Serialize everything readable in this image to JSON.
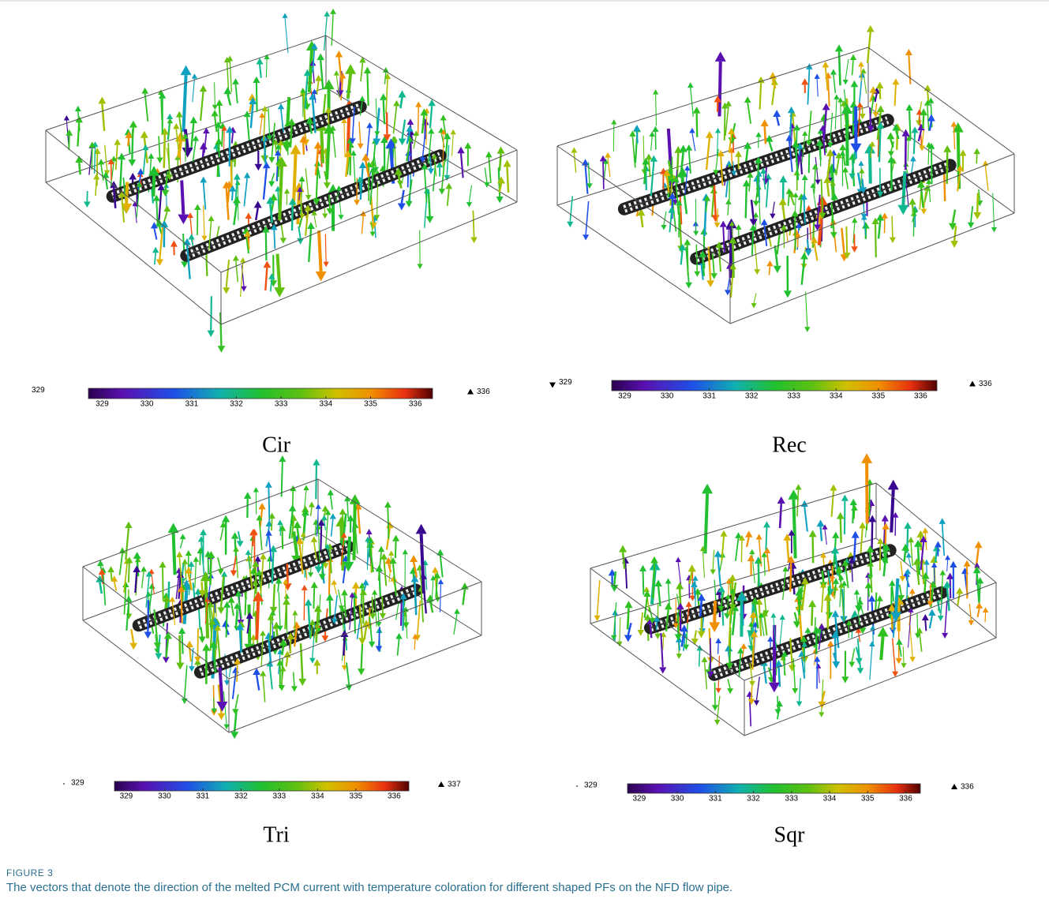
{
  "figure": {
    "panels": [
      {
        "label": "Cir",
        "colorbar": {
          "min_label": "329",
          "max_label": "336",
          "ticks": [
            329,
            330,
            331,
            332,
            333,
            334,
            335,
            336
          ]
        }
      },
      {
        "label": "Rec",
        "colorbar": {
          "min_label": "329",
          "max_label": "336",
          "ticks": [
            329,
            330,
            331,
            332,
            333,
            334,
            335,
            336
          ]
        }
      },
      {
        "label": "Tri",
        "colorbar": {
          "min_label": "329",
          "max_label": "337",
          "ticks": [
            329,
            330,
            331,
            332,
            333,
            334,
            335,
            336
          ]
        }
      },
      {
        "label": "Sqr",
        "colorbar": {
          "min_label": "329",
          "max_label": "336",
          "ticks": [
            329,
            330,
            331,
            332,
            333,
            334,
            335,
            336
          ]
        }
      }
    ],
    "caption": {
      "number": "FIGURE 3",
      "text": "The vectors that denote the direction of the melted PCM current with temperature coloration for different shaped PFs on the NFD flow pipe."
    }
  }
}
